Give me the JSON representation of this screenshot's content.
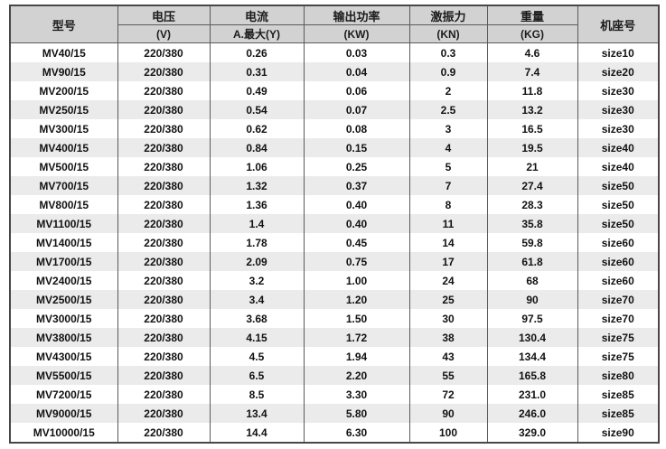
{
  "colors": {
    "page_background": "#ffffff",
    "header_background": "#d2d2d2",
    "stripe_background": "#ebebeb",
    "outer_border": "#474747",
    "inner_border": "#5a5a5a",
    "text": "#1c1c1c"
  },
  "table": {
    "header": {
      "model": "型号",
      "voltage_title": "电压",
      "voltage_unit": "(V)",
      "current_title": "电流",
      "current_unit": "A.最大(Y)",
      "power_title": "输出功率",
      "power_unit": "(KW)",
      "force_title": "激振力",
      "force_unit": "(KN)",
      "weight_title": "重量",
      "weight_unit": "(KG)",
      "frame": "机座号"
    },
    "columns_keys": [
      "model",
      "voltage",
      "current",
      "power",
      "force",
      "weight",
      "frame"
    ],
    "rows": [
      [
        "MV40/15",
        "220/380",
        "0.26",
        "0.03",
        "0.3",
        "4.6",
        "size10"
      ],
      [
        "MV90/15",
        "220/380",
        "0.31",
        "0.04",
        "0.9",
        "7.4",
        "size20"
      ],
      [
        "MV200/15",
        "220/380",
        "0.49",
        "0.06",
        "2",
        "11.8",
        "size30"
      ],
      [
        "MV250/15",
        "220/380",
        "0.54",
        "0.07",
        "2.5",
        "13.2",
        "size30"
      ],
      [
        "MV300/15",
        "220/380",
        "0.62",
        "0.08",
        "3",
        "16.5",
        "size30"
      ],
      [
        "MV400/15",
        "220/380",
        "0.84",
        "0.15",
        "4",
        "19.5",
        "size40"
      ],
      [
        "MV500/15",
        "220/380",
        "1.06",
        "0.25",
        "5",
        "21",
        "size40"
      ],
      [
        "MV700/15",
        "220/380",
        "1.32",
        "0.37",
        "7",
        "27.4",
        "size50"
      ],
      [
        "MV800/15",
        "220/380",
        "1.36",
        "0.40",
        "8",
        "28.3",
        "size50"
      ],
      [
        "MV1100/15",
        "220/380",
        "1.4",
        "0.40",
        "11",
        "35.8",
        "size50"
      ],
      [
        "MV1400/15",
        "220/380",
        "1.78",
        "0.45",
        "14",
        "59.8",
        "size60"
      ],
      [
        "MV1700/15",
        "220/380",
        "2.09",
        "0.75",
        "17",
        "61.8",
        "size60"
      ],
      [
        "MV2400/15",
        "220/380",
        "3.2",
        "1.00",
        "24",
        "68",
        "size60"
      ],
      [
        "MV2500/15",
        "220/380",
        "3.4",
        "1.20",
        "25",
        "90",
        "size70"
      ],
      [
        "MV3000/15",
        "220/380",
        "3.68",
        "1.50",
        "30",
        "97.5",
        "size70"
      ],
      [
        "MV3800/15",
        "220/380",
        "4.15",
        "1.72",
        "38",
        "130.4",
        "size75"
      ],
      [
        "MV4300/15",
        "220/380",
        "4.5",
        "1.94",
        "43",
        "134.4",
        "size75"
      ],
      [
        "MV5500/15",
        "220/380",
        "6.5",
        "2.20",
        "55",
        "165.8",
        "size80"
      ],
      [
        "MV7200/15",
        "220/380",
        "8.5",
        "3.30",
        "72",
        "231.0",
        "size85"
      ],
      [
        "MV9000/15",
        "220/380",
        "13.4",
        "5.80",
        "90",
        "246.0",
        "size85"
      ],
      [
        "MV10000/15",
        "220/380",
        "14.4",
        "6.30",
        "100",
        "329.0",
        "size90"
      ]
    ]
  }
}
